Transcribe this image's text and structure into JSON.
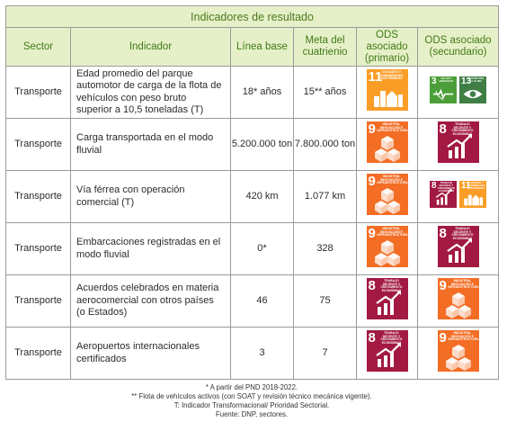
{
  "title": "Indicadores de resultado",
  "headers": {
    "sector": "Sector",
    "indicador": "Indicador",
    "linea_base": "Línea base",
    "meta": "Meta del cuatrienio",
    "ods_primario": "ODS asociado (primario)",
    "ods_secundario": "ODS asociado (secundario)"
  },
  "rows": [
    {
      "sector": "Transporte",
      "indicador": "Edad promedio del parque automotor de carga de la flota de vehículos con peso bruto superior a 10,5 toneladas (T)",
      "linea_base": "18* años",
      "meta": "15** años",
      "ods_primario": [
        {
          "number": "11",
          "label": "Ciudades y comunidades sostenibles",
          "color": "#f99d26",
          "icon": "city-icon"
        }
      ],
      "ods_secundario": [
        {
          "number": "3",
          "label": "Salud y bienestar",
          "color": "#4c9f38",
          "icon": "health-icon"
        },
        {
          "number": "13",
          "label": "Acción por el clima",
          "color": "#3f7e44",
          "icon": "eye-globe-icon"
        }
      ]
    },
    {
      "sector": "Transporte",
      "indicador": "Carga transportada en el modo fluvial",
      "linea_base": "5.200.000 ton",
      "meta": "7.800.000 ton",
      "ods_primario": [
        {
          "number": "9",
          "label": "Industria, innovación e infraestructura",
          "color": "#f36d25",
          "icon": "cubes-icon"
        }
      ],
      "ods_secundario": [
        {
          "number": "8",
          "label": "Trabajo decente y crecimiento económico",
          "color": "#a21942",
          "icon": "growth-chart-icon"
        }
      ]
    },
    {
      "sector": "Transporte",
      "indicador": "Vía férrea con operación comercial (T)",
      "linea_base": "420 km",
      "meta": "1.077 km",
      "ods_primario": [
        {
          "number": "9",
          "label": "Industria, innovación e infraestructura",
          "color": "#f36d25",
          "icon": "cubes-icon"
        }
      ],
      "ods_secundario": [
        {
          "number": "8",
          "label": "Trabajo decente y crecimiento económico",
          "color": "#a21942",
          "icon": "growth-chart-icon"
        },
        {
          "number": "11",
          "label": "Ciudades y comunidades sostenibles",
          "color": "#f99d26",
          "icon": "city-icon"
        }
      ]
    },
    {
      "sector": "Transporte",
      "indicador": "Embarcaciones registradas en el modo fluvial",
      "linea_base": "0*",
      "meta": "328",
      "ods_primario": [
        {
          "number": "9",
          "label": "Industria, innovación e infraestructura",
          "color": "#f36d25",
          "icon": "cubes-icon"
        }
      ],
      "ods_secundario": [
        {
          "number": "8",
          "label": "Trabajo decente y crecimiento económico",
          "color": "#a21942",
          "icon": "growth-chart-icon"
        }
      ]
    },
    {
      "sector": "Transporte",
      "indicador": "Acuerdos celebrados en materia aerocomercial con otros países (o Estados)",
      "linea_base": "46",
      "meta": "75",
      "ods_primario": [
        {
          "number": "8",
          "label": "Trabajo decente y crecimiento económico",
          "color": "#a21942",
          "icon": "growth-chart-icon"
        }
      ],
      "ods_secundario": [
        {
          "number": "9",
          "label": "Industria, innovación e infraestructura",
          "color": "#f36d25",
          "icon": "cubes-icon"
        }
      ]
    },
    {
      "sector": "Transporte",
      "indicador": "Aeropuertos internacionales certificados",
      "linea_base": "3",
      "meta": "7",
      "ods_primario": [
        {
          "number": "8",
          "label": "Trabajo decente y crecimiento económico",
          "color": "#a21942",
          "icon": "growth-chart-icon"
        }
      ],
      "ods_secundario": [
        {
          "number": "9",
          "label": "Industria, innovación e infraestructura",
          "color": "#f36d25",
          "icon": "cubes-icon"
        }
      ]
    }
  ],
  "notes": [
    "* A partir del PND 2018-2022.",
    "** Flota de vehículos activos (con SOAT y revisión técnico mecánica vigente).",
    "T: Indicador Transformacional/ Prioridad Sectorial.",
    "Fuente: DNP, sectores."
  ]
}
